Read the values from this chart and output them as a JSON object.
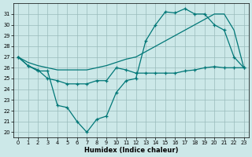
{
  "xlabel": "Humidex (Indice chaleur)",
  "xlim": [
    -0.5,
    23.5
  ],
  "ylim": [
    19.5,
    32.0
  ],
  "yticks": [
    20,
    21,
    22,
    23,
    24,
    25,
    26,
    27,
    28,
    29,
    30,
    31
  ],
  "xticks": [
    0,
    1,
    2,
    3,
    4,
    5,
    6,
    7,
    8,
    9,
    10,
    11,
    12,
    13,
    14,
    15,
    16,
    17,
    18,
    19,
    20,
    21,
    22,
    23
  ],
  "bg_color": "#cce8e8",
  "grid_color": "#99bbbb",
  "line_color": "#007777",
  "line1_x": [
    0,
    1,
    2,
    3,
    4,
    5,
    6,
    7,
    8,
    9,
    10,
    11,
    12,
    13,
    14,
    15,
    16,
    17,
    18,
    19,
    20,
    21,
    22,
    23
  ],
  "line1_y": [
    27.0,
    26.2,
    25.7,
    25.7,
    22.5,
    22.3,
    21.0,
    20.0,
    21.2,
    21.5,
    23.7,
    24.8,
    25.0,
    28.5,
    30.0,
    31.2,
    31.1,
    31.5,
    31.0,
    31.0,
    30.0,
    29.5,
    27.0,
    26.0
  ],
  "line2_x": [
    0,
    1,
    2,
    3,
    4,
    5,
    6,
    7,
    8,
    9,
    10,
    11,
    12,
    13,
    14,
    15,
    16,
    17,
    18,
    19,
    20,
    21,
    22,
    23
  ],
  "line2_y": [
    27.0,
    26.2,
    25.8,
    25.0,
    24.8,
    24.5,
    24.5,
    24.5,
    24.8,
    24.8,
    26.0,
    25.8,
    25.5,
    25.5,
    25.5,
    25.5,
    25.5,
    25.7,
    25.8,
    26.0,
    26.1,
    26.0,
    26.0,
    26.0
  ],
  "line3_x": [
    0,
    1,
    2,
    3,
    4,
    5,
    6,
    7,
    8,
    9,
    10,
    11,
    12,
    13,
    14,
    15,
    16,
    17,
    18,
    19,
    20,
    21,
    22,
    23
  ],
  "line3_y": [
    27.0,
    26.5,
    26.2,
    26.0,
    25.8,
    25.8,
    25.8,
    25.8,
    26.0,
    26.2,
    26.5,
    26.8,
    27.0,
    27.5,
    28.0,
    28.5,
    29.0,
    29.5,
    30.0,
    30.5,
    31.0,
    31.0,
    29.5,
    26.0
  ]
}
